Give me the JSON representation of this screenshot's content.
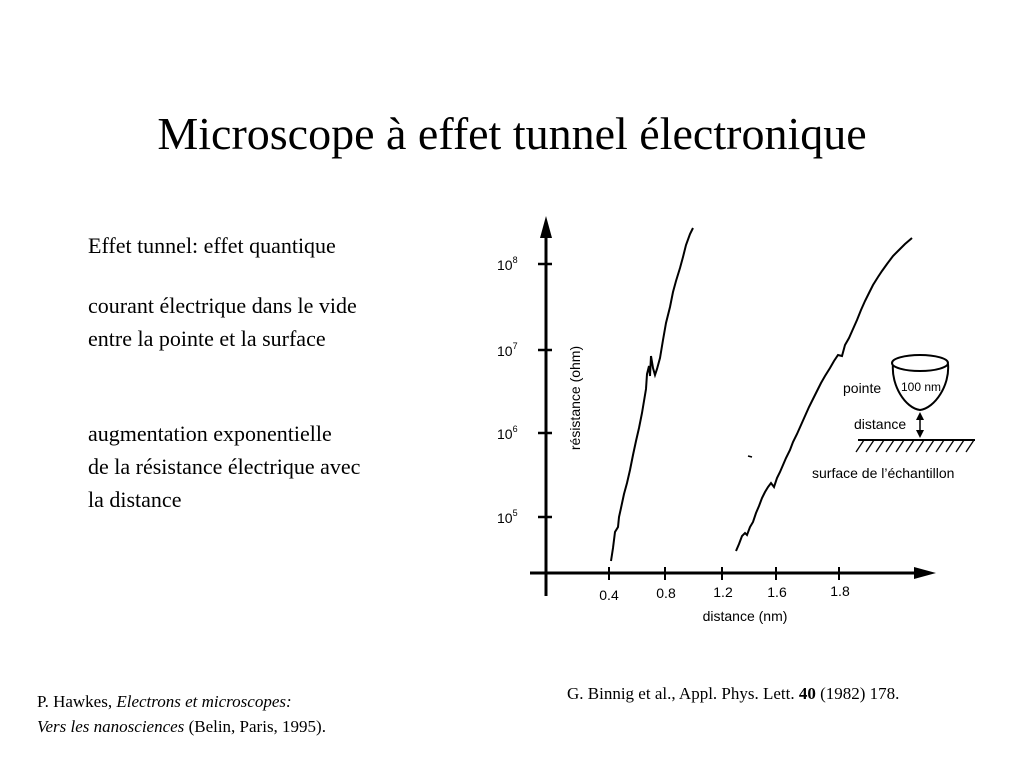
{
  "slide": {
    "title": "Microscope à effet tunnel électronique"
  },
  "text": {
    "line1": "Effet tunnel:  effet quantique",
    "line2a": "courant électrique dans le vide",
    "line2b": "entre la pointe et la surface",
    "line3a": "augmentation exponentielle",
    "line3b": "de la résistance électrique avec",
    "line3c": "la distance"
  },
  "figure": {
    "ylabel": "résistance (ohm)",
    "xlabel": "distance (nm)",
    "yticks": [
      {
        "base": "10",
        "exp": "5"
      },
      {
        "base": "10",
        "exp": "6"
      },
      {
        "base": "10",
        "exp": "7"
      },
      {
        "base": "10",
        "exp": "8"
      }
    ],
    "xticks": [
      "0.4",
      "0.8",
      "1.2",
      "1.6",
      "1.8"
    ],
    "inset": {
      "tip_label": "pointe",
      "tip_size": "100 nm",
      "distance_label": "distance",
      "surface_label": "surface de l’échantillon"
    }
  },
  "chart_data": {
    "type": "line",
    "xlabel": "distance (nm)",
    "ylabel": "résistance (ohm)",
    "y_scale": "log",
    "series": [
      {
        "x": [
          0.4,
          0.5,
          0.6,
          0.7,
          0.77,
          0.82,
          0.9
        ],
        "y": [
          60000,
          400000,
          2500000,
          7000000,
          10000000,
          25000000,
          150000000
        ]
      },
      {
        "x": [
          1.25,
          1.4,
          1.5,
          1.6,
          1.7,
          1.8,
          1.9,
          2.0
        ],
        "y": [
          60000,
          200000,
          500000,
          1500000,
          4000000,
          10000000,
          35000000,
          150000000
        ]
      }
    ]
  },
  "reference_left": {
    "author": "P. Hawkes, ",
    "title_a": "Electrons et microscopes:",
    "title_b": "Vers les nanosciences",
    "publisher": " (Belin, Paris, 1995)."
  },
  "reference_right": {
    "prefix": "G. Binnig et al., Appl. Phys. Lett. ",
    "volume": "40",
    "suffix": " (1982) 178."
  }
}
